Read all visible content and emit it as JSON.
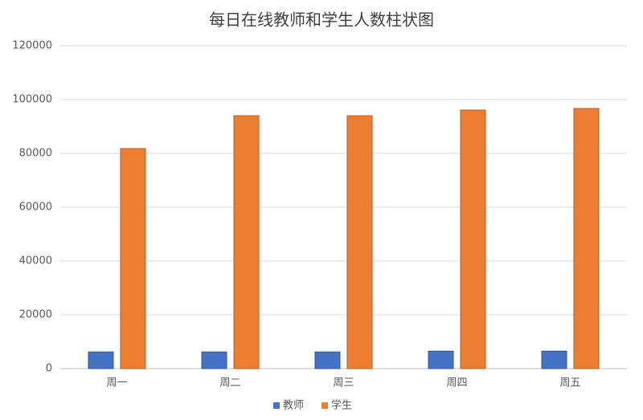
{
  "chart_data": {
    "type": "bar",
    "title": "每日在线教师和学生人数柱状图",
    "categories": [
      "周一",
      "周二",
      "周三",
      "周四",
      "周五"
    ],
    "series": [
      {
        "name": "教师",
        "color": "#4472c4",
        "values": [
          6200,
          6200,
          6200,
          6500,
          6500
        ]
      },
      {
        "name": "学生",
        "color": "#ed7d31",
        "values": [
          81800,
          94000,
          94000,
          96100,
          96700
        ]
      }
    ],
    "ylim": [
      0,
      120000
    ],
    "yticks": [
      0,
      20000,
      40000,
      60000,
      80000,
      100000,
      120000
    ],
    "grid": true,
    "legend": "bottom"
  }
}
